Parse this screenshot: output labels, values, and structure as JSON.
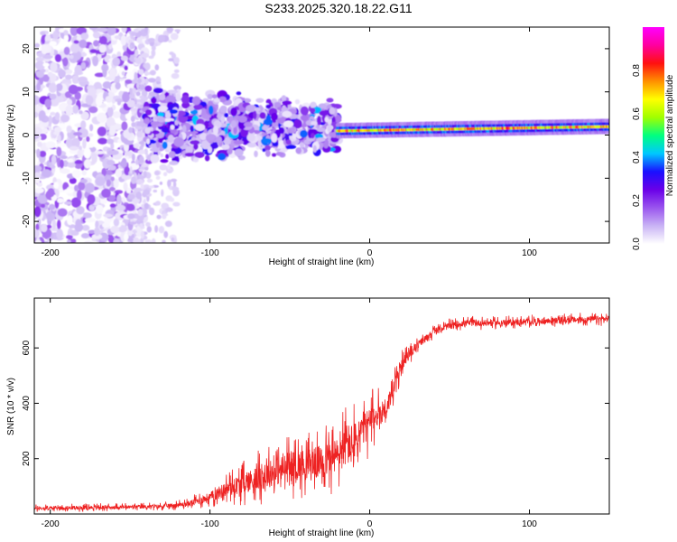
{
  "title": "S233.2025.320.18.22.G11",
  "colors": {
    "signal_trace": "#ee2222",
    "colormap": [
      "#ffffff",
      "#c9b3f5",
      "#9a55ee",
      "#6a00e8",
      "#1a10ff",
      "#00c8ff",
      "#00ff80",
      "#a0ff00",
      "#ffff00",
      "#ff9000",
      "#ff1010",
      "#ff00a0",
      "#ff00ff"
    ]
  },
  "chart_data": [
    {
      "type": "heatmap",
      "name": "spectrogram",
      "xlabel": "Height of straight line (km)",
      "ylabel": "Frequency (Hz)",
      "xlim": [
        -210,
        150
      ],
      "ylim": [
        -25,
        25
      ],
      "xticks": [
        -200,
        -100,
        0,
        100
      ],
      "yticks": [
        -20,
        -10,
        0,
        10,
        20
      ],
      "xtick_labels": [
        "-200",
        "-100",
        "0",
        "100"
      ],
      "ytick_labels": [
        "-20",
        "-10",
        "0",
        "10",
        "20"
      ],
      "colorbar": {
        "label": "Normalized spectral amplitude",
        "range": [
          0.0,
          1.0
        ],
        "ticks": [
          0.0,
          0.2,
          0.4,
          0.6,
          0.8
        ],
        "tick_labels": [
          "0.0",
          "0.2",
          "0.4",
          "0.6",
          "0.8"
        ]
      },
      "regions": [
        {
          "x_range": [
            -210,
            -140
          ],
          "freq_range": [
            -25,
            25
          ],
          "amplitude": 0.08,
          "description": "diffuse noise"
        },
        {
          "x_range": [
            -140,
            -20
          ],
          "freq_range": [
            -10,
            12
          ],
          "amplitude": 0.18,
          "description": "scattered blobs"
        },
        {
          "x_range": [
            -20,
            150
          ],
          "freq_center": [
            1,
            2
          ],
          "freq_halfwidth": 1.2,
          "amplitude": 0.7,
          "description": "narrow carrier line"
        }
      ]
    },
    {
      "type": "line",
      "name": "snr",
      "xlabel": "Height of straight line (km)",
      "ylabel": "SNR (10 * v/v)",
      "xlim": [
        -210,
        150
      ],
      "ylim": [
        0,
        780
      ],
      "xticks": [
        -200,
        -100,
        0,
        100
      ],
      "yticks": [
        200,
        400,
        600
      ],
      "xtick_labels": [
        "-200",
        "-100",
        "0",
        "100"
      ],
      "ytick_labels": [
        "200",
        "400",
        "600"
      ],
      "series": [
        {
          "name": "SNR",
          "x": [
            -210,
            -190,
            -170,
            -150,
            -130,
            -115,
            -100,
            -90,
            -80,
            -70,
            -60,
            -50,
            -40,
            -30,
            -20,
            -15,
            -10,
            -5,
            0,
            5,
            10,
            15,
            20,
            25,
            30,
            40,
            50,
            60,
            80,
            100,
            120,
            150
          ],
          "y": [
            20,
            22,
            24,
            25,
            28,
            35,
            60,
            90,
            110,
            130,
            150,
            170,
            180,
            190,
            210,
            250,
            250,
            300,
            330,
            360,
            380,
            450,
            540,
            580,
            610,
            660,
            680,
            690,
            690,
            695,
            700,
            705
          ],
          "spread": [
            15,
            15,
            15,
            15,
            15,
            20,
            40,
            60,
            80,
            100,
            110,
            120,
            120,
            130,
            150,
            170,
            170,
            150,
            120,
            100,
            90,
            70,
            50,
            40,
            30,
            25,
            25,
            25,
            25,
            25,
            25,
            25
          ]
        }
      ]
    }
  ]
}
